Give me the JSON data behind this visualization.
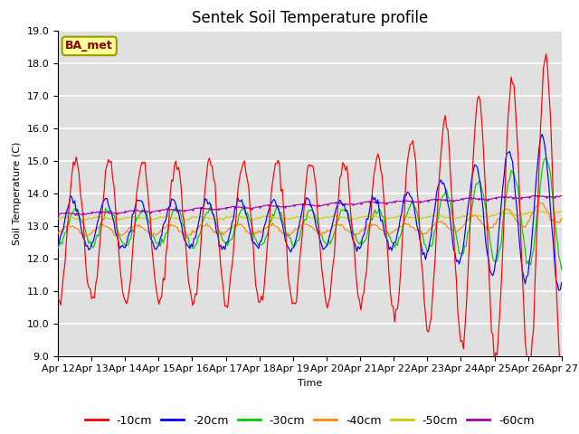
{
  "title": "Sentek Soil Temperature profile",
  "xlabel": "Time",
  "ylabel": "Soil Temperature (C)",
  "ylim": [
    9.0,
    19.0
  ],
  "yticks": [
    9.0,
    10.0,
    11.0,
    12.0,
    13.0,
    14.0,
    15.0,
    16.0,
    17.0,
    18.0,
    19.0
  ],
  "xtick_labels": [
    "Apr 12",
    "Apr 13",
    "Apr 14",
    "Apr 15",
    "Apr 16",
    "Apr 17",
    "Apr 18",
    "Apr 19",
    "Apr 20",
    "Apr 21",
    "Apr 22",
    "Apr 23",
    "Apr 24",
    "Apr 25",
    "Apr 26",
    "Apr 27"
  ],
  "annotation": "BA_met",
  "colors": {
    "-10cm": "#ff0000",
    "-20cm": "#0000ff",
    "-30cm": "#00cc00",
    "-40cm": "#ff8800",
    "-50cm": "#cccc00",
    "-60cm": "#aa00aa"
  },
  "background_color": "#e0e0e0",
  "title_fontsize": 12,
  "axis_fontsize": 8,
  "legend_fontsize": 9
}
